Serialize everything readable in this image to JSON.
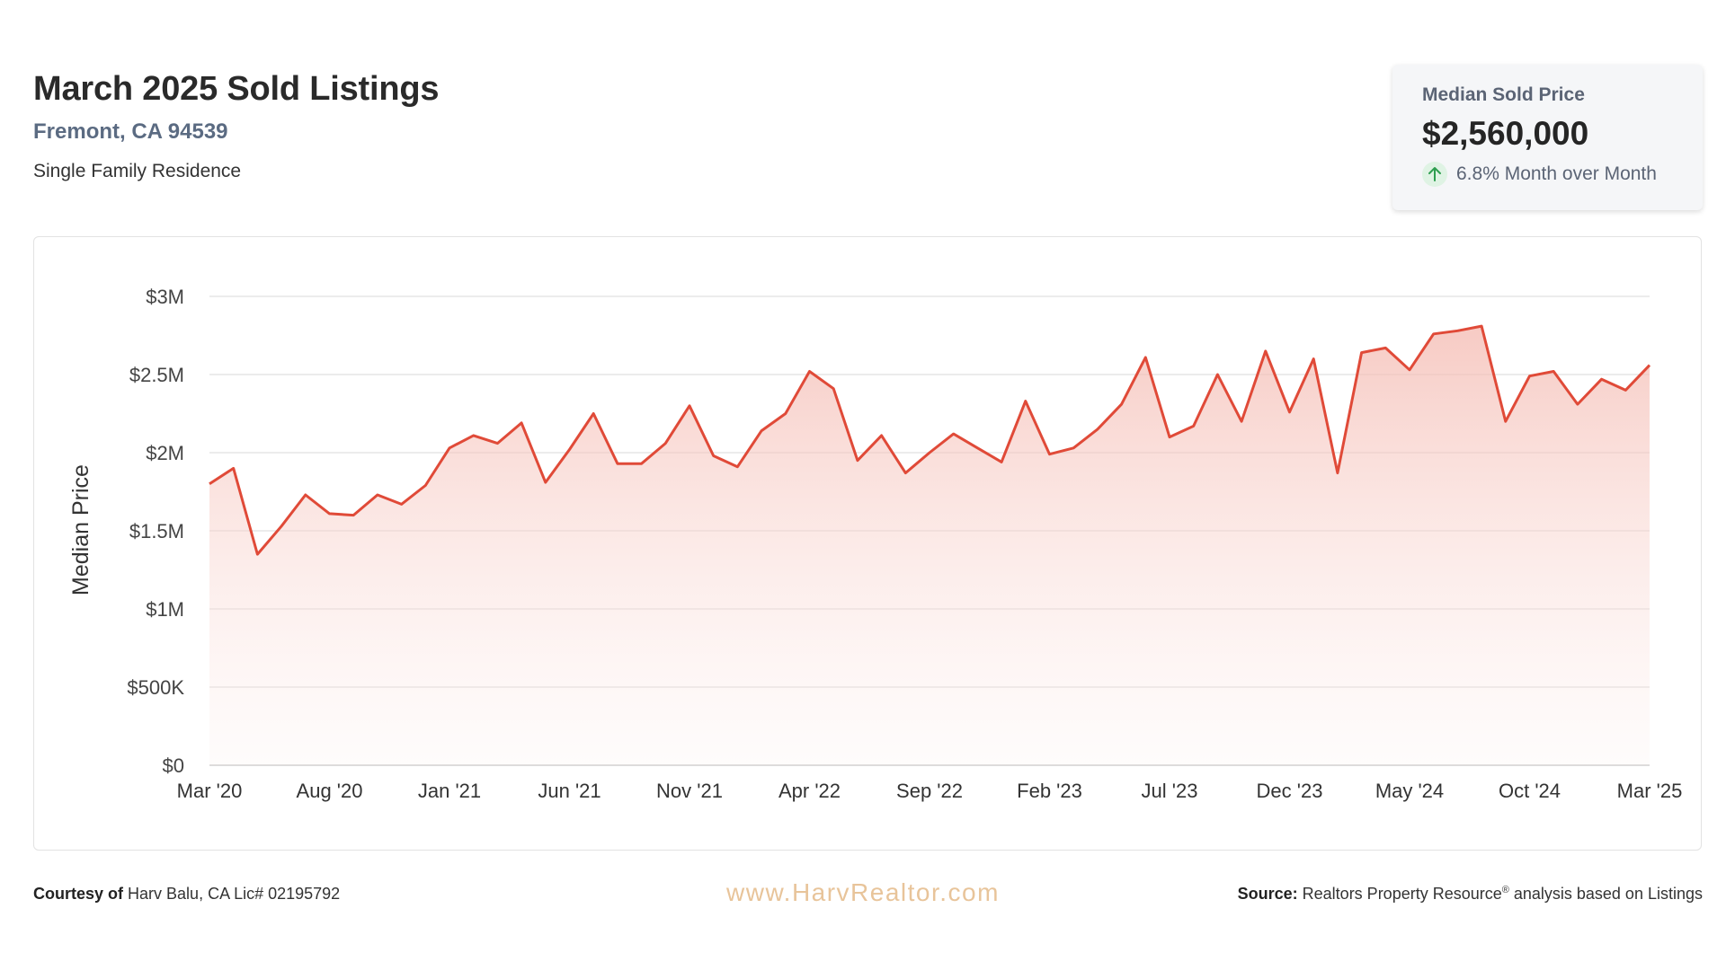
{
  "header": {
    "title": "March 2025 Sold Listings",
    "location": "Fremont, CA 94539",
    "property_type": "Single Family Residence"
  },
  "stat_card": {
    "label": "Median Sold Price",
    "value": "$2,560,000",
    "change_icon": "arrow-up-icon",
    "change_text": "6.8% Month over Month"
  },
  "footer": {
    "courtesy_label": "Courtesy of",
    "courtesy_text": "Harv Balu, CA Lic# 02195792",
    "website": "www.HarvRealtor.com",
    "source_label": "Source:",
    "source_text_1": "Realtors Property Resource",
    "source_reg": "®",
    "source_text_2": " analysis based on Listings"
  },
  "colors": {
    "line": "#e04a38",
    "fill": "#f6c9c2",
    "grid": "#e6e6e6",
    "accent_up": "#2e9e50"
  },
  "chart_data": {
    "type": "area",
    "title": "",
    "xlabel": "",
    "ylabel": "Median Price",
    "ylim": [
      0,
      3000000
    ],
    "y_ticks": [
      0,
      500000,
      1000000,
      1500000,
      2000000,
      2500000,
      3000000
    ],
    "y_tick_labels": [
      "$0",
      "$500K",
      "$1M",
      "$1.5M",
      "$2M",
      "$2.5M",
      "$3M"
    ],
    "x_tick_labels": [
      "Mar '20",
      "Aug '20",
      "Jan '21",
      "Jun '21",
      "Nov '21",
      "Apr '22",
      "Sep '22",
      "Feb '23",
      "Jul '23",
      "Dec '23",
      "May '24",
      "Oct '24",
      "Mar '25"
    ],
    "x_tick_every": 5,
    "grid": true,
    "legend": "none",
    "series": [
      {
        "x": [
          "Mar '20",
          "Apr '20",
          "May '20",
          "Jun '20",
          "Jul '20",
          "Aug '20",
          "Sep '20",
          "Oct '20",
          "Nov '20",
          "Dec '20",
          "Jan '21",
          "Feb '21",
          "Mar '21",
          "Apr '21",
          "May '21",
          "Jun '21",
          "Jul '21",
          "Aug '21",
          "Sep '21",
          "Oct '21",
          "Nov '21",
          "Dec '21",
          "Jan '22",
          "Feb '22",
          "Mar '22",
          "Apr '22",
          "May '22",
          "Jun '22",
          "Jul '22",
          "Aug '22",
          "Sep '22",
          "Oct '22",
          "Nov '22",
          "Dec '22",
          "Jan '23",
          "Feb '23",
          "Mar '23",
          "Apr '23",
          "May '23",
          "Jun '23",
          "Jul '23",
          "Aug '23",
          "Sep '23",
          "Oct '23",
          "Nov '23",
          "Dec '23",
          "Jan '24",
          "Feb '24",
          "Mar '24",
          "Apr '24",
          "May '24",
          "Jun '24",
          "Jul '24",
          "Aug '24",
          "Sep '24",
          "Oct '24",
          "Nov '24",
          "Dec '24",
          "Jan '25",
          "Feb '25",
          "Mar '25"
        ],
        "values": [
          1800000,
          1900000,
          1350000,
          1530000,
          1730000,
          1610000,
          1600000,
          1730000,
          1670000,
          1790000,
          2030000,
          2110000,
          2060000,
          2190000,
          1810000,
          2020000,
          2250000,
          1930000,
          1930000,
          2060000,
          2300000,
          1980000,
          1910000,
          2140000,
          2250000,
          2520000,
          2410000,
          1950000,
          2110000,
          1870000,
          2000000,
          2120000,
          2030000,
          1940000,
          2330000,
          1990000,
          2030000,
          2150000,
          2310000,
          2610000,
          2100000,
          2170000,
          2500000,
          2200000,
          2650000,
          2260000,
          2600000,
          1870000,
          2640000,
          2670000,
          2530000,
          2760000,
          2780000,
          2810000,
          2200000,
          2490000,
          2520000,
          2310000,
          2470000,
          2400000,
          2560000
        ]
      }
    ]
  }
}
